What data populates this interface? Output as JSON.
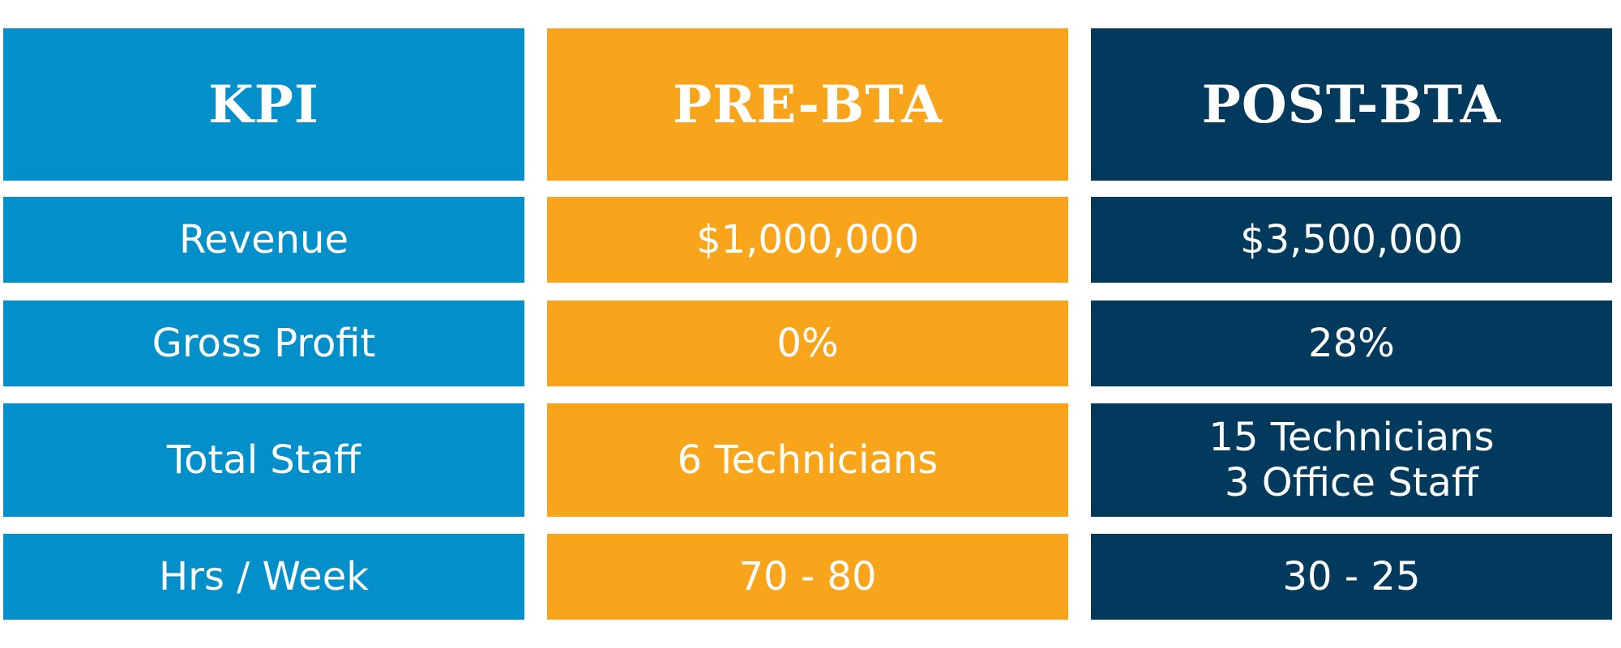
{
  "colors": {
    "kpi": "#028fca",
    "pre": "#f8a51c",
    "post": "#023a5e",
    "text": "#ffffff"
  },
  "headers": {
    "kpi": "KPI",
    "pre": "PRE-BTA",
    "post": "POST-BTA"
  },
  "rows": [
    {
      "kpi": "Revenue",
      "pre": "$1,000,000",
      "post": [
        "$3,500,000"
      ]
    },
    {
      "kpi": "Gross Profit",
      "pre": "0%",
      "post": [
        "28%"
      ]
    },
    {
      "kpi": "Total Staff",
      "pre": "6 Technicians",
      "post": [
        "15 Technicians",
        "3 Office Staff"
      ]
    },
    {
      "kpi": "Hrs / Week",
      "pre": "70 - 80",
      "post": [
        "30 - 25"
      ]
    }
  ]
}
